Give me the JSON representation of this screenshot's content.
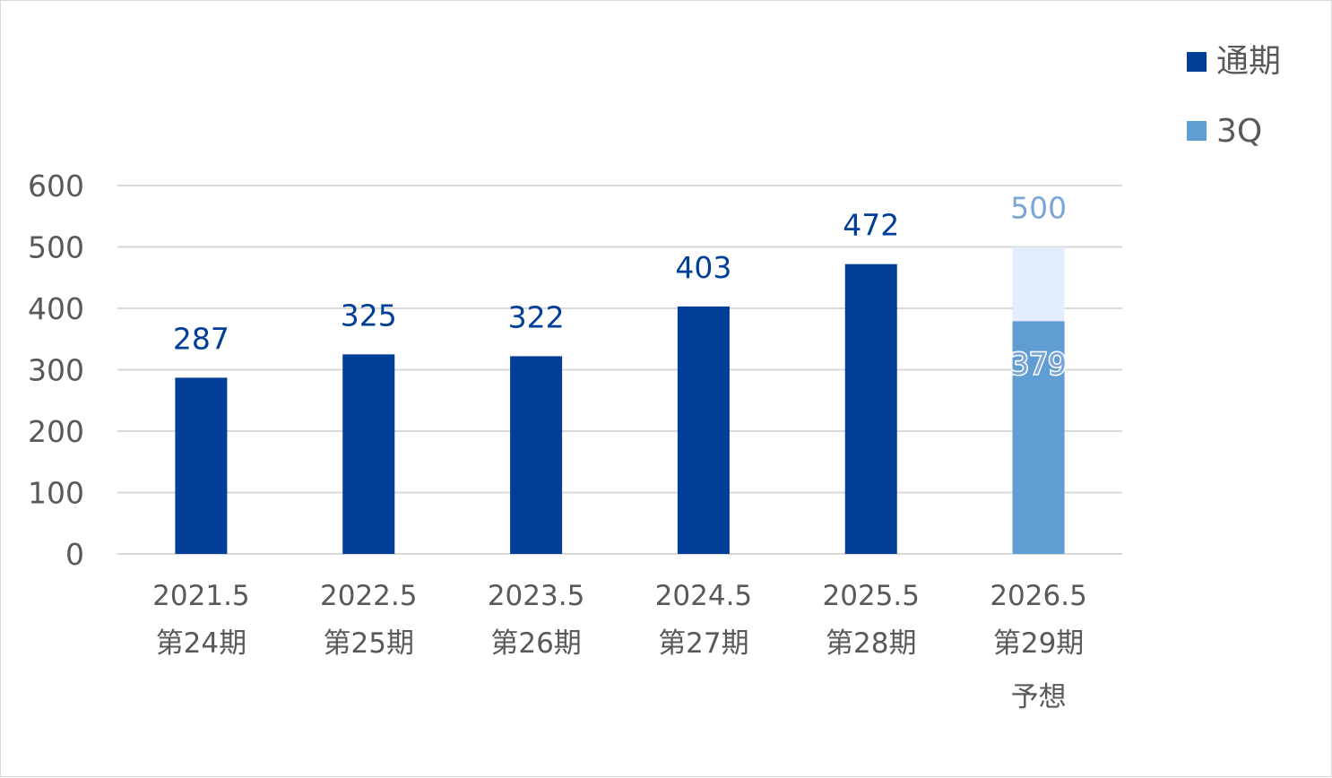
{
  "chart_data": {
    "type": "bar",
    "categories": [
      [
        "2021.5",
        "第24期"
      ],
      [
        "2022.5",
        "第25期"
      ],
      [
        "2023.5",
        "第26期"
      ],
      [
        "2024.5",
        "第27期"
      ],
      [
        "2025.5",
        "第28期"
      ],
      [
        "2026.5",
        "第29期",
        "予想"
      ]
    ],
    "ylim": [
      0,
      600
    ],
    "yticks": [
      "0",
      "100",
      "200",
      "300",
      "400",
      "500",
      "600"
    ],
    "grid": true,
    "legend_position": "top-right",
    "series": [
      {
        "name": "通期",
        "color": "#003e97",
        "values": [
          287,
          325,
          322,
          403,
          472,
          null
        ],
        "labels": [
          "287",
          "325",
          "322",
          "403",
          "472",
          ""
        ]
      },
      {
        "name": "3Q",
        "color": "#609dd3",
        "values": [
          null,
          null,
          null,
          null,
          null,
          379
        ],
        "labels": [
          "",
          "",
          "",
          "",
          "",
          "379"
        ]
      }
    ],
    "forecast": {
      "category_index": 5,
      "value": 500,
      "label": "500",
      "color": "#e4edfb",
      "label_color": "#7ca6d9"
    }
  }
}
